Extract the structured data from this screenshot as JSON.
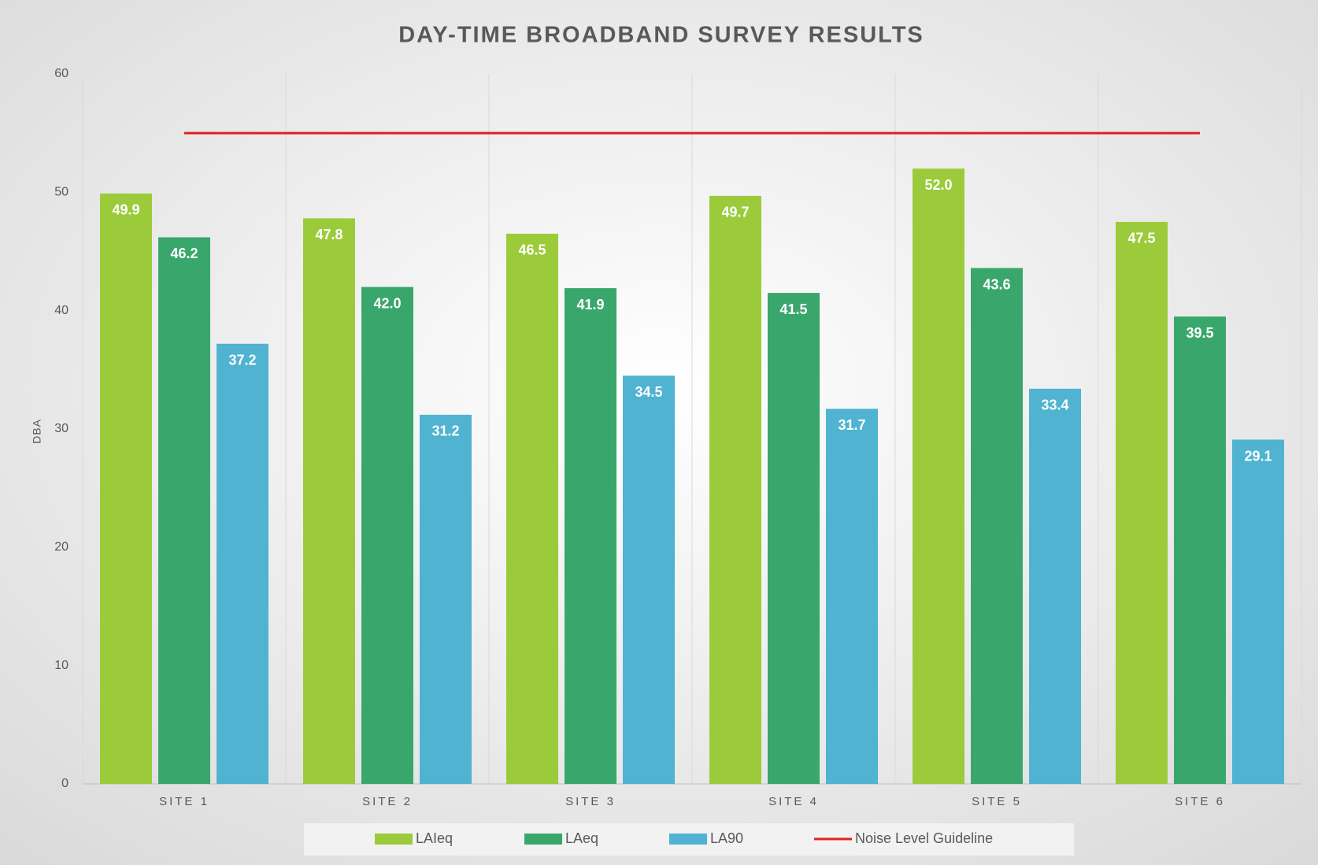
{
  "chart_data": {
    "type": "bar",
    "title": "DAY-TIME BROADBAND SURVEY RESULTS",
    "y_label": "DBA",
    "categories": [
      "SITE 1",
      "SITE 2",
      "SITE 3",
      "SITE 4",
      "SITE 5",
      "SITE 6"
    ],
    "series": [
      {
        "name": "LAIeq",
        "color": "#9bcb3b",
        "values": [
          49.9,
          47.8,
          46.5,
          49.7,
          52.0,
          47.5
        ],
        "value_labels": [
          "49.9",
          "47.8",
          "46.5",
          "49.7",
          "52.0",
          "47.5"
        ]
      },
      {
        "name": "LAeq",
        "color": "#39a76b",
        "values": [
          46.2,
          42.0,
          41.9,
          41.5,
          43.6,
          39.5
        ],
        "value_labels": [
          "46.2",
          "42.0",
          "41.9",
          "41.5",
          "43.6",
          "39.5"
        ]
      },
      {
        "name": "LA90",
        "color": "#4fb3d1",
        "values": [
          37.2,
          31.2,
          34.5,
          31.7,
          33.4,
          29.1
        ],
        "value_labels": [
          "37.2",
          "31.2",
          "34.5",
          "31.7",
          "33.4",
          "29.1"
        ]
      },
      {
        "name": "Noise Level Guideline",
        "type": "line",
        "color": "#e0201f",
        "values": [
          55,
          55,
          55,
          55,
          55,
          55
        ]
      }
    ],
    "ylim": [
      0,
      60
    ],
    "yticks": [
      0,
      10,
      20,
      30,
      40,
      50,
      60
    ],
    "legend": "bottom"
  }
}
